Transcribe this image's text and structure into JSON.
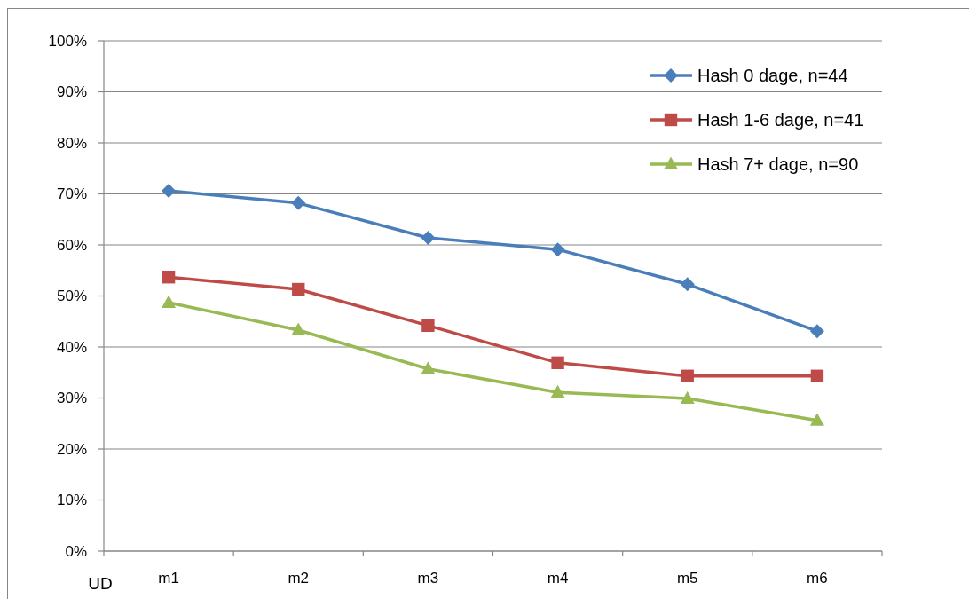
{
  "chart_data": {
    "type": "line",
    "xlabel": "UD",
    "categories": [
      "m1",
      "m2",
      "m3",
      "m4",
      "m5",
      "m6"
    ],
    "series": [
      {
        "name": "Hash 0 dage, n=44",
        "color": "#4a7ebb",
        "marker": "diamond",
        "values": [
          70.6,
          68.2,
          61.4,
          59.1,
          52.3,
          43.1
        ]
      },
      {
        "name": "Hash 1-6 dage, n=41",
        "color": "#be4b48",
        "marker": "square",
        "values": [
          53.7,
          51.3,
          44.2,
          36.9,
          34.3,
          34.3
        ]
      },
      {
        "name": "Hash 7+ dage, n=90",
        "color": "#98b954",
        "marker": "triangle",
        "values": [
          48.7,
          43.3,
          35.7,
          31.1,
          29.9,
          25.6
        ]
      }
    ],
    "ylim": [
      0,
      100
    ],
    "yticks": [
      {
        "value": 0,
        "label": "0%"
      },
      {
        "value": 10,
        "label": "10%"
      },
      {
        "value": 20,
        "label": "20%"
      },
      {
        "value": 30,
        "label": "30%"
      },
      {
        "value": 40,
        "label": "40%"
      },
      {
        "value": 50,
        "label": "50%"
      },
      {
        "value": 60,
        "label": "60%"
      },
      {
        "value": 70,
        "label": "70%"
      },
      {
        "value": 80,
        "label": "80%"
      },
      {
        "value": 90,
        "label": "90%"
      },
      {
        "value": 100,
        "label": "100%"
      }
    ],
    "grid": "y",
    "legend": "top right",
    "line_style": "solid"
  }
}
